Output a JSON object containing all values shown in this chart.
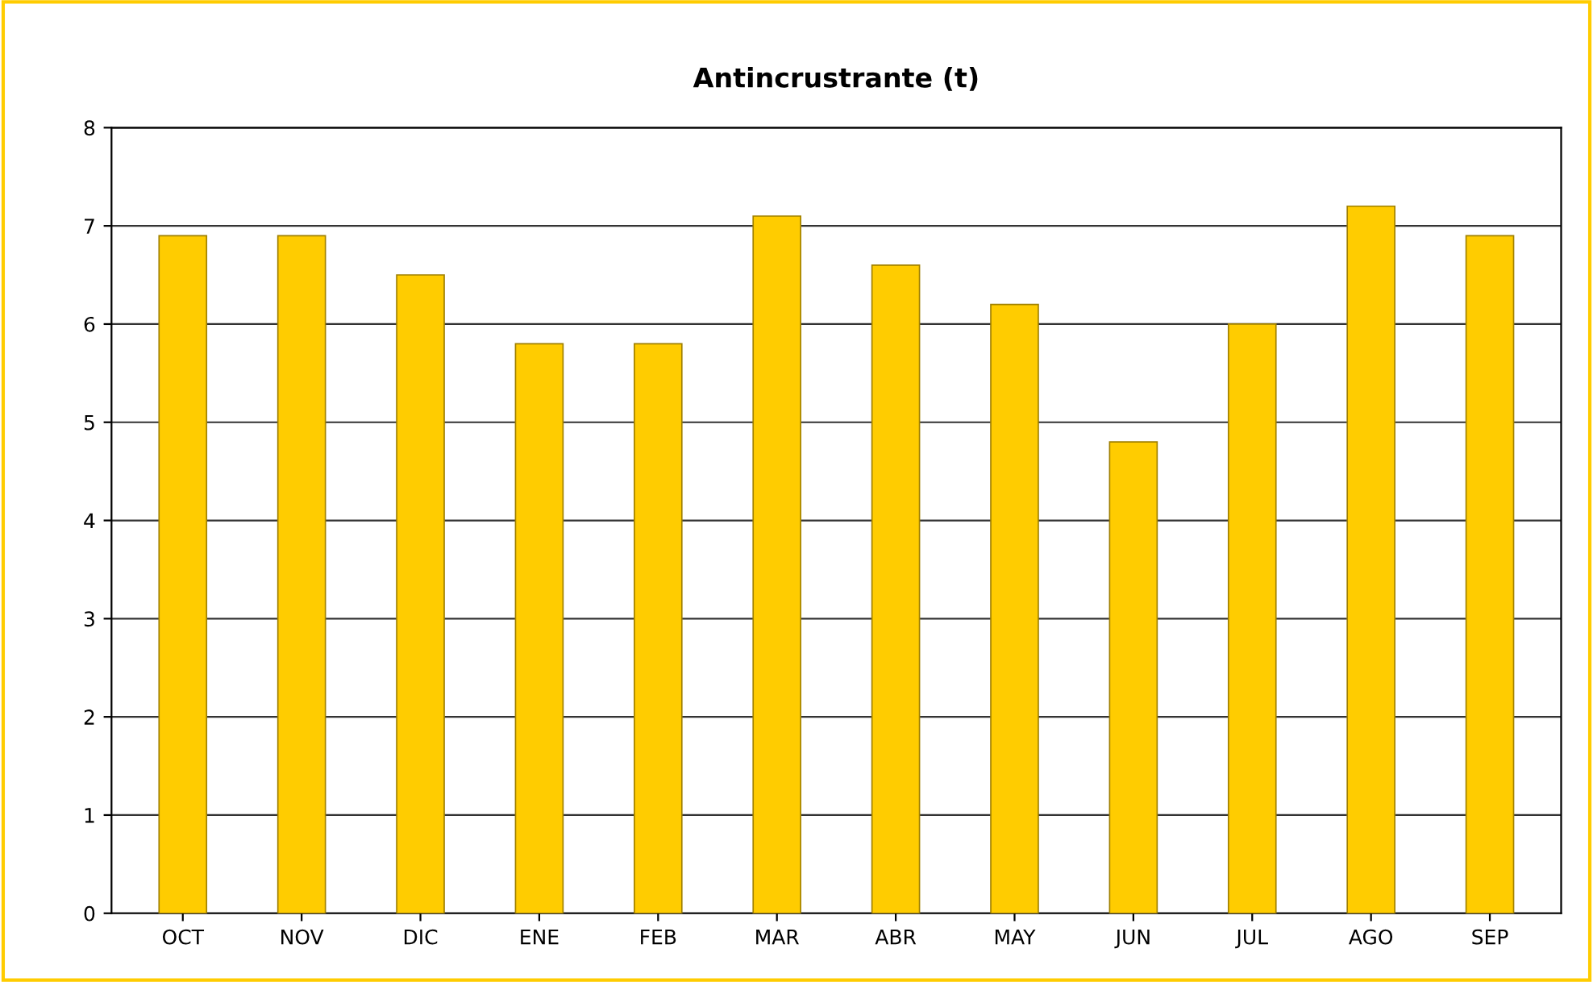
{
  "chart_data": {
    "type": "bar",
    "title": "Antincrustrante (t)",
    "categories": [
      "OCT",
      "NOV",
      "DIC",
      "ENE",
      "FEB",
      "MAR",
      "ABR",
      "MAY",
      "JUN",
      "JUL",
      "AGO",
      "SEP"
    ],
    "values": [
      6.9,
      6.9,
      6.5,
      5.8,
      5.8,
      7.1,
      6.6,
      6.2,
      4.8,
      6.0,
      7.2,
      6.9
    ],
    "color": "#ffcc00",
    "ylim": [
      0,
      8
    ],
    "yticks": [
      0,
      1,
      2,
      3,
      4,
      5,
      6,
      7,
      8
    ],
    "grid": "y",
    "legend": false
  }
}
